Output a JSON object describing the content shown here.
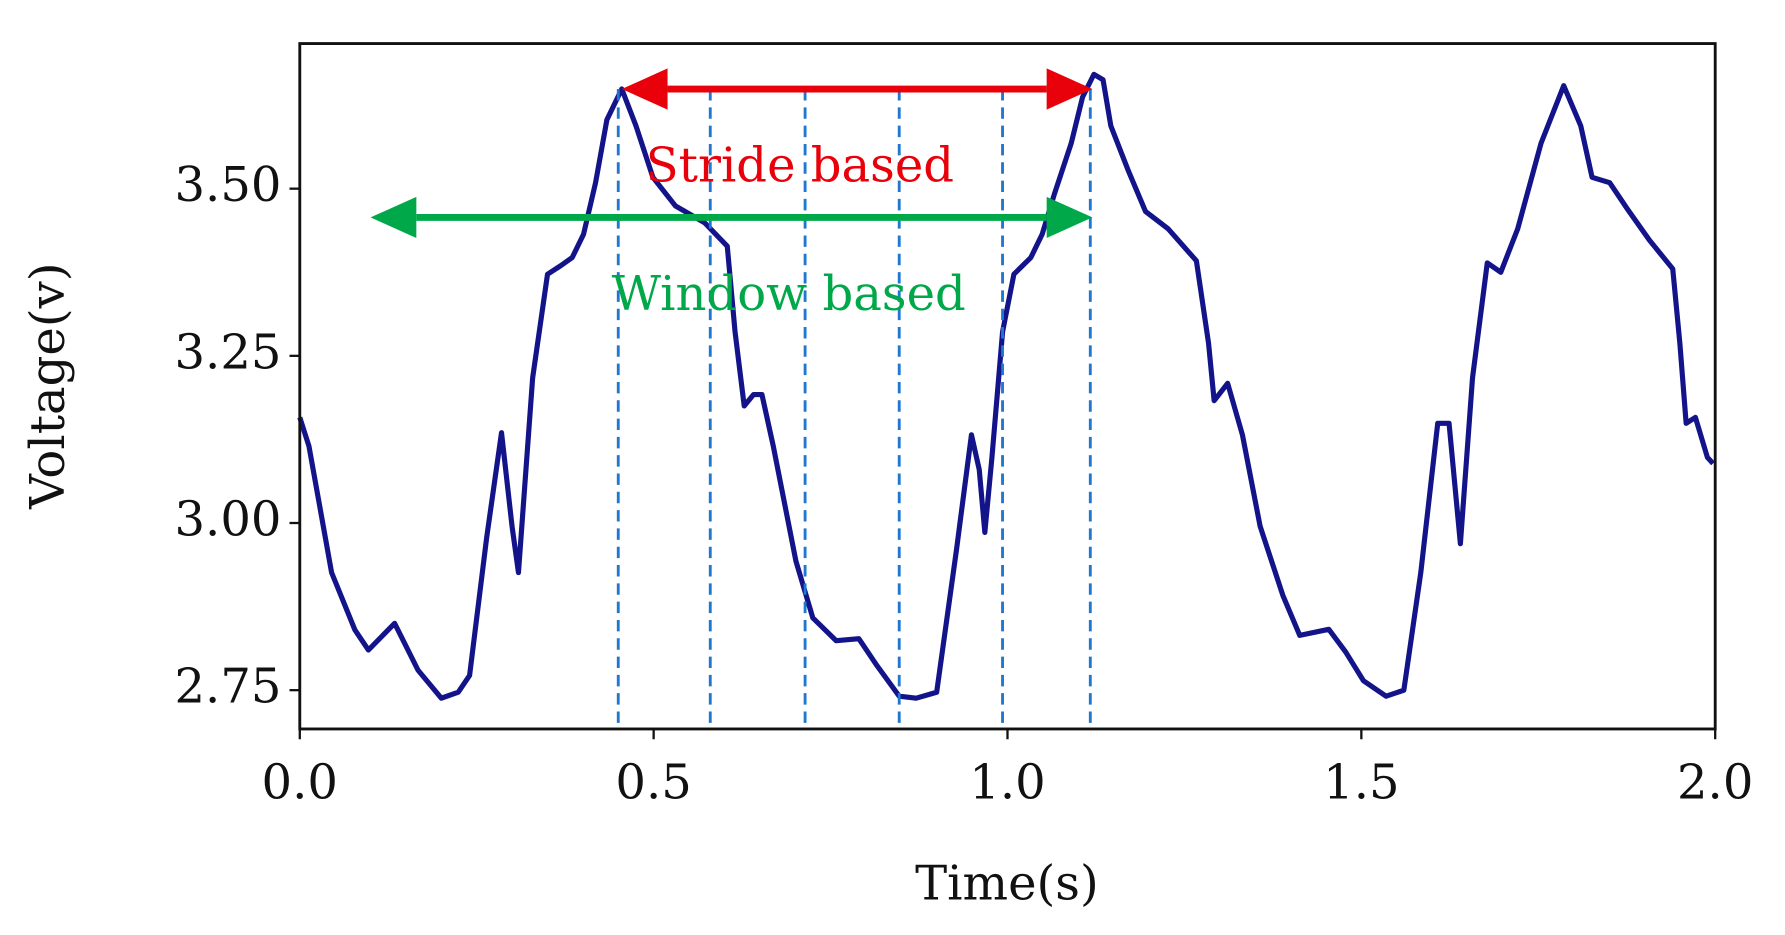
{
  "chart_data": {
    "type": "line",
    "xlabel": "Time(s)",
    "ylabel": "Voltage(v)",
    "x": [
      0,
      0.013,
      0.045,
      0.078,
      0.097,
      0.134,
      0.167,
      0.2,
      0.224,
      0.24,
      0.264,
      0.285,
      0.3,
      0.309,
      0.329,
      0.35,
      0.369,
      0.385,
      0.401,
      0.418,
      0.434,
      0.455,
      0.475,
      0.499,
      0.531,
      0.572,
      0.604,
      0.615,
      0.628,
      0.641,
      0.653,
      0.669,
      0.701,
      0.725,
      0.758,
      0.79,
      0.814,
      0.847,
      0.871,
      0.9,
      0.928,
      0.949,
      0.96,
      0.968,
      0.978,
      0.993,
      1.009,
      1.033,
      1.049,
      1.066,
      1.09,
      1.106,
      1.122,
      1.135,
      1.146,
      1.171,
      1.195,
      1.227,
      1.267,
      1.284,
      1.292,
      1.311,
      1.332,
      1.357,
      1.389,
      1.413,
      1.454,
      1.478,
      1.503,
      1.535,
      1.56,
      1.584,
      1.608,
      1.624,
      1.64,
      1.657,
      1.678,
      1.697,
      1.721,
      1.754,
      1.786,
      1.81,
      1.826,
      1.851,
      1.875,
      1.907,
      1.94,
      1.95,
      1.959,
      1.972,
      1.989,
      1.997
    ],
    "values": [
      3.158,
      3.115,
      2.926,
      2.84,
      2.81,
      2.85,
      2.78,
      2.738,
      2.747,
      2.772,
      2.978,
      3.135,
      2.995,
      2.926,
      3.217,
      3.372,
      3.385,
      3.397,
      3.432,
      3.509,
      3.603,
      3.649,
      3.594,
      3.517,
      3.474,
      3.449,
      3.414,
      3.286,
      3.175,
      3.192,
      3.192,
      3.115,
      2.943,
      2.858,
      2.824,
      2.827,
      2.789,
      2.741,
      2.738,
      2.747,
      2.961,
      3.132,
      3.08,
      2.986,
      3.098,
      3.286,
      3.372,
      3.397,
      3.432,
      3.491,
      3.568,
      3.637,
      3.671,
      3.663,
      3.594,
      3.526,
      3.466,
      3.44,
      3.392,
      3.269,
      3.183,
      3.209,
      3.132,
      2.995,
      2.892,
      2.832,
      2.841,
      2.807,
      2.764,
      2.741,
      2.75,
      2.926,
      3.149,
      3.149,
      2.969,
      3.217,
      3.389,
      3.375,
      3.44,
      3.568,
      3.654,
      3.594,
      3.517,
      3.509,
      3.471,
      3.423,
      3.38,
      3.269,
      3.149,
      3.158,
      3.098,
      3.089
    ],
    "color": "#14148a",
    "xlim": [
      0,
      2
    ],
    "xticks": [
      {
        "value": 0,
        "label": "0.0"
      },
      0.5,
      {
        "value": 1,
        "label": "1.0"
      },
      1.5,
      {
        "value": 2,
        "label": "2.0"
      }
    ],
    "ylim": [
      2.692,
      3.717
    ],
    "yticks": [
      2.75,
      {
        "value": 3,
        "label": "3.00"
      },
      3.25,
      {
        "value": 3.5,
        "label": "3.50"
      }
    ],
    "vlines": [
      0.45,
      0.58,
      0.714,
      0.847,
      0.993,
      1.117
    ],
    "vline_color": "#1f77d0",
    "annotations": [
      {
        "text": "Stride based",
        "color": "#e8000b",
        "x": [
          0.455,
          1.12
        ],
        "y": 3.649
      },
      {
        "text": "Window based",
        "color": "#00a84a",
        "x": [
          0.1,
          1.12
        ],
        "y": 3.457
      }
    ]
  }
}
